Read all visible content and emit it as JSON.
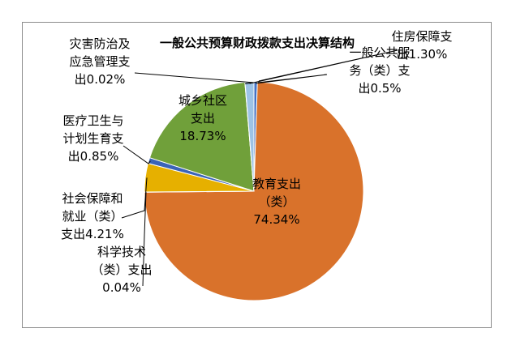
{
  "chart_data": {
    "type": "pie",
    "title": "一般公共预算财政拨款支出决算结构",
    "slices": [
      {
        "name": "一般公共服务（类）支出",
        "value": 0.5,
        "value_label": "0.5%",
        "color": "#4472c4",
        "label_lines": [
          "一般公共服",
          "务（类）支",
          "出0.5%"
        ]
      },
      {
        "name": "教育支出（类）",
        "value": 74.34,
        "value_label": "74.34%",
        "color": "#d9722b",
        "label_lines": [
          "教育支出",
          "（类）",
          "74.34%"
        ]
      },
      {
        "name": "科学技术（类）支出",
        "value": 0.04,
        "value_label": "0.04%",
        "color": "#a5a5a5",
        "label_lines": [
          "科学技术",
          "（类）支出",
          "0.04%"
        ]
      },
      {
        "name": "社会保障和就业（类）支出",
        "value": 4.21,
        "value_label": "4.21%",
        "color": "#e6b000",
        "label_lines": [
          "社会保障和",
          "就业（类）",
          "支出4.21%"
        ]
      },
      {
        "name": "医疗卫生与计划生育支出",
        "value": 0.85,
        "value_label": "0.85%",
        "color": "#3b64b8",
        "label_lines": [
          "医疗卫生与",
          "计划生育支",
          "出0.85%"
        ]
      },
      {
        "name": "城乡社区支出",
        "value": 18.73,
        "value_label": "18.73%",
        "color": "#70a03a",
        "label_lines": [
          "城乡社区",
          "支出",
          "18.73%"
        ]
      },
      {
        "name": "灾害防治及应急管理支出",
        "value": 0.02,
        "value_label": "0.02%",
        "color": "#264478",
        "label_lines": [
          "灾害防治及",
          "应急管理支",
          "出0.02%"
        ]
      },
      {
        "name": "住房保障支出",
        "value": 1.3,
        "value_label": "1.30%",
        "color": "#9dc3e6",
        "label_lines": [
          "住房保障支",
          "出1.30%"
        ]
      }
    ],
    "legend": "none"
  }
}
